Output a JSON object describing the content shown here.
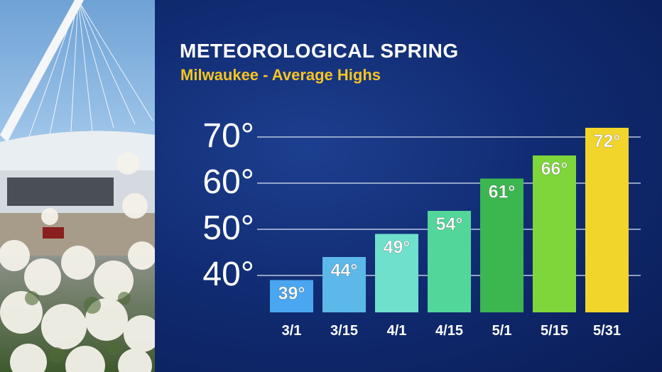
{
  "chart_data": {
    "type": "bar",
    "title": "METEOROLOGICAL SPRING",
    "subtitle": "Milwaukee - Average Highs",
    "categories": [
      "3/1",
      "3/15",
      "4/1",
      "4/15",
      "5/1",
      "5/15",
      "5/31"
    ],
    "values": [
      39,
      44,
      49,
      54,
      61,
      66,
      72
    ],
    "value_labels": [
      "39°",
      "44°",
      "49°",
      "54°",
      "61°",
      "66°",
      "72°"
    ],
    "yticks": [
      40,
      50,
      60,
      70
    ],
    "ytick_labels": [
      "40°",
      "50°",
      "60°",
      "70°"
    ],
    "ylim": [
      32,
      72
    ],
    "grid": true,
    "colors": [
      "#4aa6f0",
      "#5cb8e8",
      "#6ee0cc",
      "#52d69a",
      "#3cb64f",
      "#7ed63a",
      "#f2d52a"
    ],
    "text_color": "#ffffff",
    "subtitle_color": "#f6c521"
  }
}
